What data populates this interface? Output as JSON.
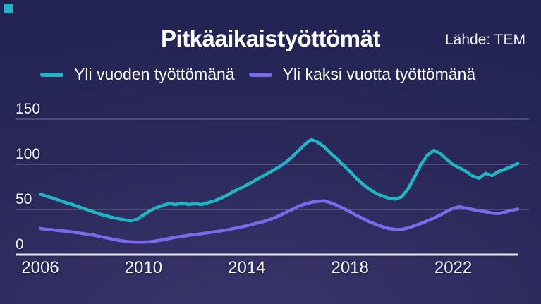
{
  "page": {
    "title": "Pitkäaikaistyöttömät",
    "source": "Lähde: TEM"
  },
  "legend": [
    {
      "label": "Yli vuoden työttömänä",
      "color": "#1fb5c4"
    },
    {
      "label": "Yli kaksi vuotta työttömänä",
      "color": "#7b68ea"
    }
  ],
  "colors": {
    "background_top": "#1e2150",
    "background_bottom": "#3a356b",
    "grid": "rgba(228,228,250,0.30)",
    "axis": "#e6e4f4",
    "text": "#f3f2fb",
    "logo": "#1fb5c4"
  },
  "chart_data": {
    "type": "line",
    "title": "Pitkäaikaistyöttömät",
    "source": "Lähde: TEM",
    "xlabel": "",
    "ylabel": "",
    "x_start": 2006,
    "x_step": 0.25,
    "xlim": [
      2006,
      2024.5
    ],
    "ylim": [
      0,
      160
    ],
    "xticks": [
      2006,
      2010,
      2014,
      2018,
      2022
    ],
    "yticks": [
      150,
      100,
      50,
      0
    ],
    "grid": "horizontal",
    "legend_position": "top",
    "series": [
      {
        "name": "Yli vuoden työttömänä",
        "color": "#1fb5c4",
        "values": [
          67,
          64.5,
          62.5,
          60,
          57.5,
          55.5,
          53,
          50.5,
          48,
          45.5,
          43.5,
          41.5,
          40,
          38.5,
          37.5,
          39,
          44,
          48.5,
          52,
          54.5,
          56.5,
          55.5,
          57,
          55.5,
          56.5,
          55.5,
          57.5,
          59.5,
          62.5,
          66,
          70,
          73.5,
          77,
          81,
          85,
          89,
          93,
          97,
          102,
          108,
          115,
          122,
          127.5,
          124.5,
          119.5,
          112,
          106,
          99,
          92,
          84.5,
          78,
          72.5,
          68,
          65,
          62.5,
          61.5,
          64,
          73,
          86,
          100,
          110,
          115.5,
          112,
          105.5,
          99.5,
          96,
          92,
          87,
          84.5,
          90,
          87.5,
          92,
          94.5,
          97.5,
          101
        ]
      },
      {
        "name": "Yli kaksi vuotta työttömänä",
        "color": "#7b68ea",
        "values": [
          29,
          28,
          27.5,
          26.5,
          26,
          25,
          24,
          23,
          22,
          20.5,
          19,
          17.5,
          16,
          15,
          14.2,
          13.8,
          13.8,
          14.3,
          15.2,
          16.5,
          18,
          19.2,
          20.3,
          21.5,
          22.3,
          23.2,
          24.2,
          25.3,
          26.3,
          27.5,
          29,
          30.5,
          32,
          33.8,
          35.5,
          37.5,
          40,
          43,
          46.5,
          50,
          53.5,
          56,
          58,
          59,
          59.5,
          57.5,
          54.5,
          51,
          47.5,
          43.5,
          40,
          36.5,
          33.5,
          31,
          29,
          28,
          28,
          29.5,
          32,
          34.5,
          37.5,
          40.5,
          44,
          48,
          51.5,
          53,
          51.5,
          50,
          48.5,
          47.5,
          46,
          45.5,
          47,
          49,
          50.5
        ]
      }
    ]
  }
}
